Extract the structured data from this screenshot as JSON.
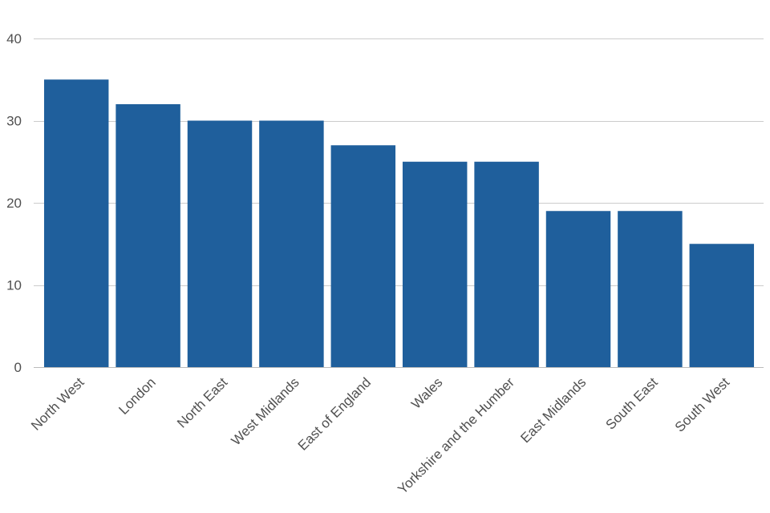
{
  "chart_data": {
    "type": "bar",
    "title": "",
    "xlabel": "",
    "ylabel": "",
    "categories": [
      "North West",
      "London",
      "North East",
      "West Midlands",
      "East of England",
      "Wales",
      "Yorkshire and the Humber",
      "East Midlands",
      "South East",
      "South West"
    ],
    "values": [
      35,
      32,
      30,
      30,
      27,
      25,
      25,
      19,
      19,
      15
    ],
    "ylim": [
      0,
      40
    ],
    "yticks": [
      0,
      10,
      20,
      30,
      40
    ],
    "grid": true,
    "legend": "none",
    "colors": {
      "bar": "#1f5f9c",
      "grid": "#cccccc",
      "text": "#505050"
    }
  }
}
